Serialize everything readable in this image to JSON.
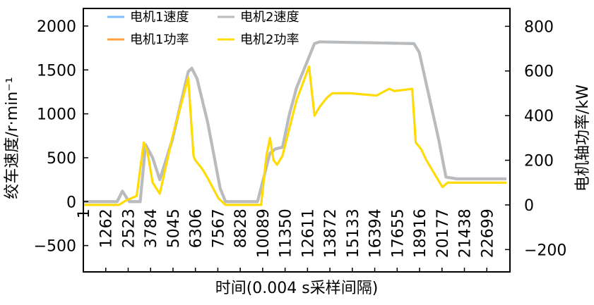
{
  "chart_data": {
    "type": "line",
    "title": "",
    "xlabel": "时间(0.004 s采样间隔)",
    "ylabel": "绞车速度/r·min⁻¹",
    "y2label": "电机轴功率/kW",
    "xlim": [
      1,
      24000
    ],
    "ylim": [
      -800,
      2200
    ],
    "y2lim": [
      -300,
      880
    ],
    "yticks": [
      "2000",
      "1500",
      "1000",
      "500",
      "0",
      "−500"
    ],
    "yticks_values": [
      2000,
      1500,
      1000,
      500,
      0,
      -500
    ],
    "y2ticks": [
      "800",
      "600",
      "400",
      "200",
      "0",
      "−200"
    ],
    "y2ticks_values": [
      800,
      600,
      400,
      200,
      0,
      -200
    ],
    "xticks": [
      "1",
      "1262",
      "2523",
      "3784",
      "5045",
      "6306",
      "7567",
      "8828",
      "10089",
      "11350",
      "12611",
      "13872",
      "15133",
      "16394",
      "17655",
      "18916",
      "20177",
      "21438",
      "22699"
    ],
    "xticks_values": [
      1,
      1262,
      2523,
      3784,
      5045,
      6306,
      7567,
      8828,
      10089,
      11350,
      12611,
      13872,
      15133,
      16394,
      17655,
      18916,
      20177,
      21438,
      22699
    ],
    "grid": false,
    "legend_position": "top-left",
    "series": [
      {
        "name": "电机1速度",
        "axis": "left",
        "color": "#7fbfff",
        "x": [
          1,
          1900,
          2200,
          2450,
          2600,
          3200,
          3500,
          3900,
          4300,
          5000,
          5900,
          6100,
          6400,
          7000,
          7700,
          8000,
          9800,
          10500,
          10800,
          11200,
          11600,
          12000,
          13000,
          13300,
          18600,
          18900,
          20000,
          20400,
          21000,
          23800
        ],
        "y": [
          0,
          0,
          120,
          40,
          0,
          0,
          650,
          500,
          250,
          700,
          1480,
          1520,
          1400,
          900,
          150,
          0,
          0,
          550,
          600,
          620,
          1000,
          1300,
          1800,
          1820,
          1800,
          1700,
          700,
          280,
          260,
          260
        ]
      },
      {
        "name": "电机2速度",
        "axis": "left",
        "color": "#bbbbbb",
        "x": [
          1,
          1900,
          2200,
          2450,
          2600,
          3200,
          3500,
          3900,
          4300,
          5000,
          5900,
          6100,
          6400,
          7000,
          7700,
          8000,
          9800,
          10500,
          10800,
          11200,
          11600,
          12000,
          13000,
          13300,
          18600,
          18900,
          20000,
          20400,
          21000,
          23800
        ],
        "y": [
          0,
          0,
          120,
          40,
          0,
          0,
          650,
          500,
          250,
          700,
          1480,
          1520,
          1400,
          900,
          150,
          0,
          0,
          550,
          600,
          620,
          1000,
          1300,
          1800,
          1820,
          1800,
          1700,
          700,
          280,
          260,
          260
        ]
      },
      {
        "name": "电机1功率",
        "axis": "right",
        "color": "#ff9f40",
        "x": [
          1,
          2000,
          2400,
          3000,
          3400,
          3600,
          3900,
          4300,
          5000,
          5900,
          6200,
          6300,
          6700,
          7000,
          7600,
          8000,
          10000,
          10300,
          10500,
          10700,
          10900,
          11200,
          12000,
          12700,
          13000,
          13300,
          13700,
          14000,
          15000,
          16500,
          17200,
          17500,
          18500,
          18700,
          19000,
          19300,
          20200,
          20500,
          23800
        ],
        "y": [
          0,
          0,
          20,
          40,
          280,
          240,
          100,
          50,
          300,
          570,
          220,
          200,
          160,
          120,
          30,
          0,
          0,
          220,
          300,
          200,
          180,
          220,
          470,
          620,
          400,
          440,
          480,
          500,
          500,
          490,
          520,
          510,
          520,
          280,
          250,
          200,
          80,
          100,
          100
        ]
      },
      {
        "name": "电机2功率",
        "axis": "right",
        "color": "#ffdd00",
        "x": [
          1,
          2000,
          2400,
          3000,
          3400,
          3600,
          3900,
          4300,
          5000,
          5900,
          6200,
          6300,
          6700,
          7000,
          7600,
          8000,
          10000,
          10300,
          10500,
          10700,
          10900,
          11200,
          12000,
          12700,
          13000,
          13300,
          13700,
          14000,
          15000,
          16500,
          17200,
          17500,
          18500,
          18700,
          19000,
          19300,
          20200,
          20500,
          23800
        ],
        "y": [
          0,
          0,
          20,
          40,
          280,
          240,
          100,
          50,
          300,
          570,
          220,
          200,
          160,
          120,
          30,
          0,
          0,
          220,
          300,
          200,
          180,
          220,
          470,
          620,
          400,
          440,
          480,
          500,
          500,
          490,
          520,
          510,
          520,
          280,
          250,
          200,
          80,
          100,
          100
        ]
      }
    ]
  }
}
